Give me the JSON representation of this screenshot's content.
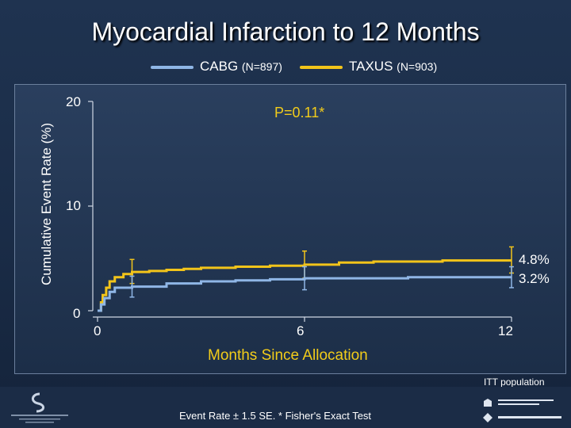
{
  "title": "Myocardial Infarction to 12 Months",
  "legend": [
    {
      "name": "CABG",
      "n": "(N=897)",
      "color": "#8fb6e6"
    },
    {
      "name": "TAXUS",
      "n": "(N=903)",
      "color": "#f2c41a"
    }
  ],
  "p_value": "P=0.11*",
  "itt": "ITT population",
  "footnote": "Event Rate ± 1.5 SE. * Fisher's Exact Test",
  "chart_data": {
    "type": "line",
    "ylabel": "Cumulative Event Rate (%)",
    "xlabel": "Months Since Allocation",
    "xlim": [
      0,
      12
    ],
    "ylim": [
      0,
      20
    ],
    "x_ticks": [
      "0",
      "6",
      "12"
    ],
    "y_ticks": [
      "0",
      "10",
      "20"
    ],
    "series": [
      {
        "name": "TAXUS",
        "color": "#f2c41a",
        "points": [
          [
            0,
            0
          ],
          [
            0.1,
            0.8
          ],
          [
            0.15,
            1.5
          ],
          [
            0.25,
            2.2
          ],
          [
            0.35,
            2.8
          ],
          [
            0.5,
            3.2
          ],
          [
            0.75,
            3.5
          ],
          [
            1,
            3.7
          ],
          [
            1.5,
            3.8
          ],
          [
            2,
            3.9
          ],
          [
            2.5,
            4.0
          ],
          [
            3,
            4.1
          ],
          [
            4,
            4.2
          ],
          [
            5,
            4.3
          ],
          [
            6,
            4.4
          ],
          [
            7,
            4.6
          ],
          [
            8,
            4.7
          ],
          [
            9,
            4.7
          ],
          [
            10,
            4.8
          ],
          [
            11,
            4.8
          ],
          [
            12,
            4.8
          ]
        ],
        "error_bars": [
          {
            "x": 1,
            "low": 2.6,
            "high": 4.9
          },
          {
            "x": 6,
            "low": 3.1,
            "high": 5.7
          },
          {
            "x": 12,
            "low": 3.6,
            "high": 6.1
          }
        ],
        "end_label": "4.8%"
      },
      {
        "name": "CABG",
        "color": "#8fb6e6",
        "points": [
          [
            0,
            0
          ],
          [
            0.1,
            0.6
          ],
          [
            0.2,
            1.2
          ],
          [
            0.35,
            1.8
          ],
          [
            0.5,
            2.2
          ],
          [
            1,
            2.3
          ],
          [
            2,
            2.6
          ],
          [
            3,
            2.8
          ],
          [
            4,
            2.9
          ],
          [
            5,
            3.0
          ],
          [
            6,
            3.1
          ],
          [
            7,
            3.1
          ],
          [
            8,
            3.1
          ],
          [
            9,
            3.2
          ],
          [
            10,
            3.2
          ],
          [
            11,
            3.2
          ],
          [
            12,
            3.2
          ]
        ],
        "error_bars": [
          {
            "x": 1,
            "low": 1.3,
            "high": 3.3
          },
          {
            "x": 6,
            "low": 2.0,
            "high": 4.2
          },
          {
            "x": 12,
            "low": 2.2,
            "high": 4.2
          }
        ],
        "end_label": "3.2%"
      }
    ]
  }
}
